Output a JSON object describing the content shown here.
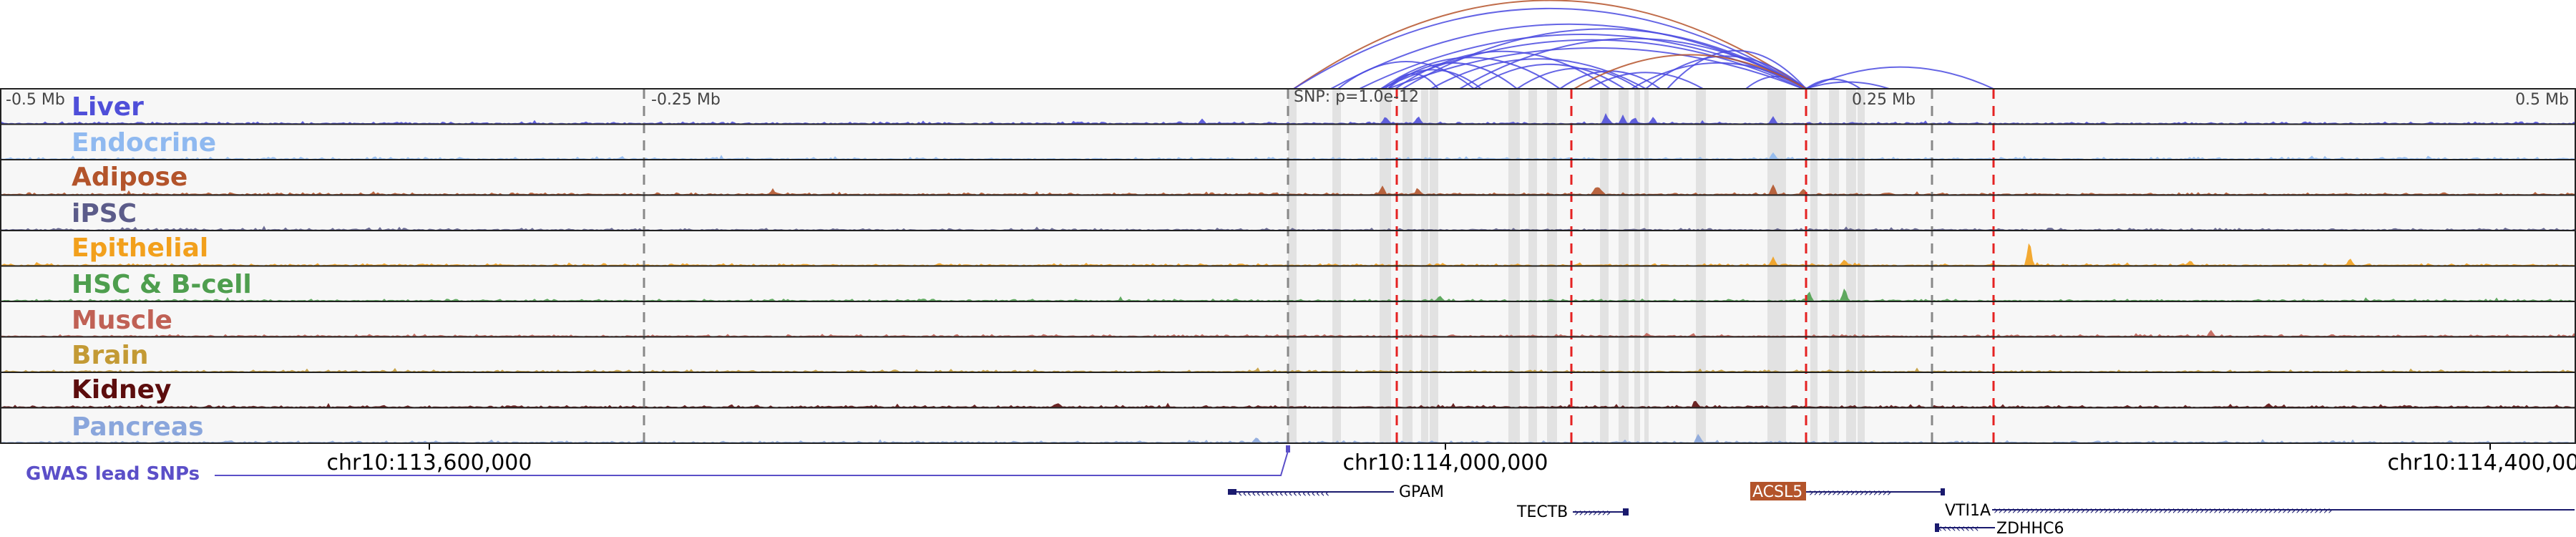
{
  "scale": {
    "left_label": "-0.5 Mb",
    "left_mid_label": "-0.25 Mb",
    "snp_label": "SNP: p=1.0e-12",
    "right_mid_label": "0.25 Mb",
    "right_label": "0.5 Mb"
  },
  "tracks": [
    {
      "name": "Liver",
      "color": "#4f4fd9"
    },
    {
      "name": "Endocrine",
      "color": "#8fb9f0"
    },
    {
      "name": "Adipose",
      "color": "#b3542b"
    },
    {
      "name": "iPSC",
      "color": "#5c5c8a"
    },
    {
      "name": "Epithelial",
      "color": "#f2a01c"
    },
    {
      "name": "HSC & B-cell",
      "color": "#4e9e4e"
    },
    {
      "name": "Muscle",
      "color": "#c06155"
    },
    {
      "name": "Brain",
      "color": "#c39a35"
    },
    {
      "name": "Kidney",
      "color": "#5c0d0d"
    },
    {
      "name": "Pancreas",
      "color": "#8aa6dc"
    }
  ],
  "coordinates": {
    "left": "chr10:113,600,000",
    "center": "chr10:114,000,000",
    "right": "chr10:114,400,000"
  },
  "gwas_label": "GWAS lead SNPs",
  "genes": [
    "GPAM",
    "TECTB",
    "ACSL5",
    "VTI1A",
    "ZDHHC6"
  ],
  "colors": {
    "loop": "#4a4ae0",
    "loop_highlight": "#b5542b",
    "red_marker": "#e52222",
    "gray_band": "#e2e2e2",
    "gwas": "#5b4fc8",
    "gene": "#1a1a6e",
    "acsl5_box": "#b3542b"
  }
}
